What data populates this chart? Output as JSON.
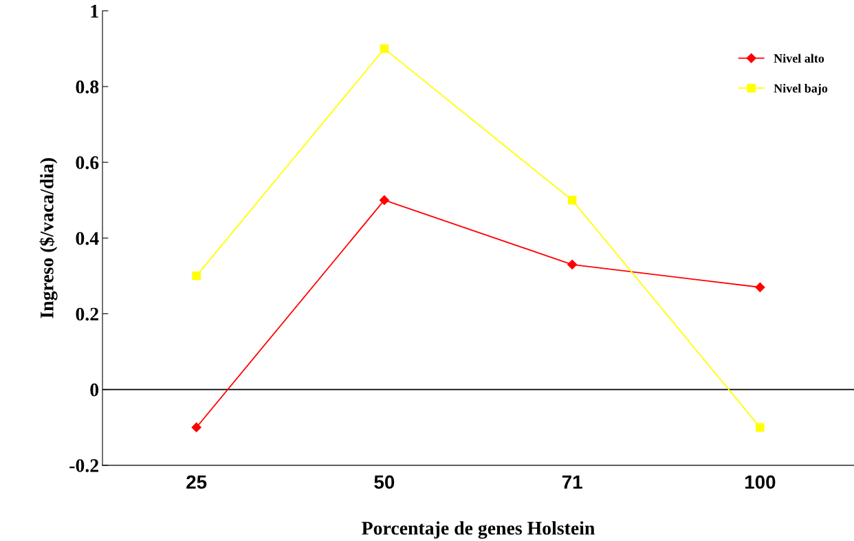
{
  "chart_data": {
    "type": "line",
    "xlabel": "Porcentaje de genes Holstein",
    "ylabel": "Ingreso ($/vaca/dia)",
    "categories": [
      "25",
      "50",
      "71",
      "100"
    ],
    "series": [
      {
        "name": "Nivel alto",
        "color": "#ff0000",
        "marker": "diamond",
        "values": [
          -0.1,
          0.5,
          0.33,
          0.27
        ]
      },
      {
        "name": "Nivel bajo",
        "color": "#ffff00",
        "marker": "square",
        "values": [
          0.3,
          0.9,
          0.5,
          -0.1
        ]
      }
    ],
    "ylim": [
      -0.2,
      1
    ],
    "yticks": [
      -0.2,
      0,
      0.2,
      0.4,
      0.6,
      0.8,
      1
    ],
    "ref_lines": [
      {
        "axis": "y",
        "value": 0,
        "color": "#000000"
      }
    ],
    "grid": false,
    "legend": "top right"
  }
}
